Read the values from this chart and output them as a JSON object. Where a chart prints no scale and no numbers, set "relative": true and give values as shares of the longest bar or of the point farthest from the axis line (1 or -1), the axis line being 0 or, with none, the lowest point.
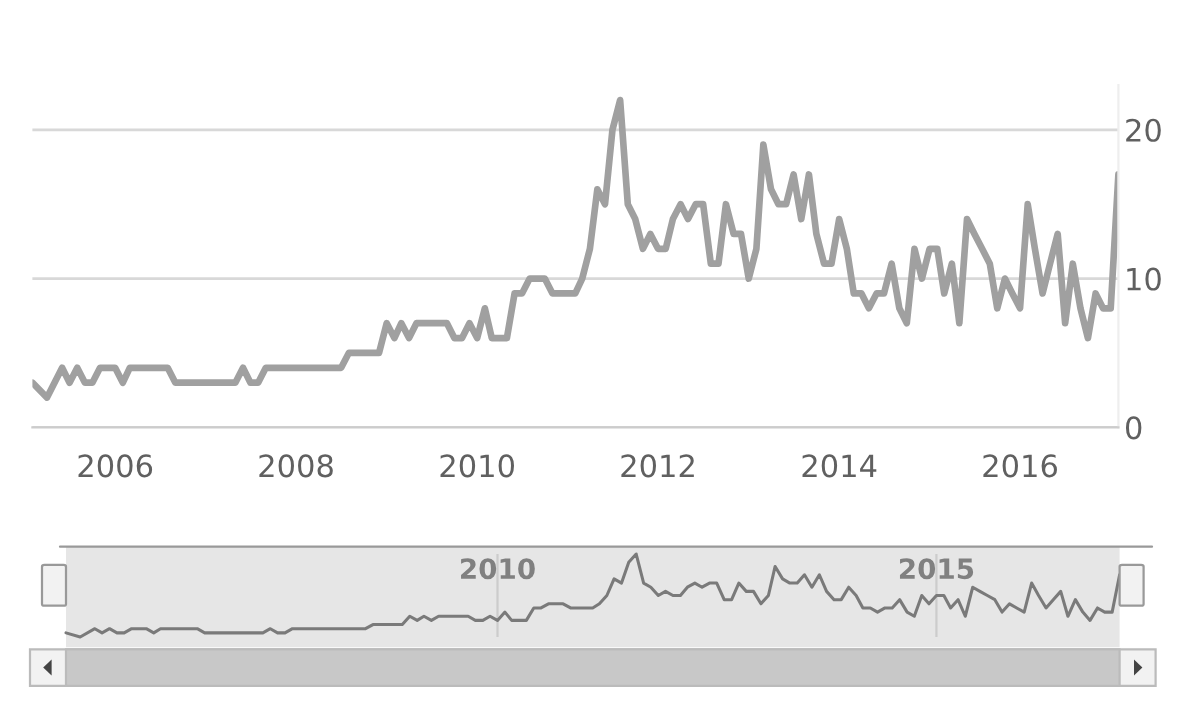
{
  "chart_data": [
    {
      "type": "line",
      "x": [
        "2005-02",
        "2005-04",
        "2005-06",
        "2005-07",
        "2005-08",
        "2005-09",
        "2005-10",
        "2005-11",
        "2006-01",
        "2006-02",
        "2006-03",
        "2006-08",
        "2006-09",
        "2007-05",
        "2007-06",
        "2007-07",
        "2007-08",
        "2007-09",
        "2008-07",
        "2008-08",
        "2008-12",
        "2009-01",
        "2009-02",
        "2009-03",
        "2009-04",
        "2009-05",
        "2009-09",
        "2009-10",
        "2009-11",
        "2009-12",
        "2010-01",
        "2010-02",
        "2010-03",
        "2010-05",
        "2010-06",
        "2010-07",
        "2010-08",
        "2010-10",
        "2010-11",
        "2011-02",
        "2011-03",
        "2011-04",
        "2011-05",
        "2011-06",
        "2011-07",
        "2011-08",
        "2011-09",
        "2011-10",
        "2011-11",
        "2011-12",
        "2012-01",
        "2012-02",
        "2012-03",
        "2012-04",
        "2012-05",
        "2012-06",
        "2012-07",
        "2012-08",
        "2012-09",
        "2012-10",
        "2012-11",
        "2012-12",
        "2013-01",
        "2013-02",
        "2013-03",
        "2013-04",
        "2013-05",
        "2013-06",
        "2013-07",
        "2013-08",
        "2013-09",
        "2013-10",
        "2013-11",
        "2013-12",
        "2014-01",
        "2014-02",
        "2014-03",
        "2014-04",
        "2014-05",
        "2014-06",
        "2014-07",
        "2014-08",
        "2014-09",
        "2014-10",
        "2014-11",
        "2014-12",
        "2015-01",
        "2015-02",
        "2015-03",
        "2015-04",
        "2015-05",
        "2015-06",
        "2015-07",
        "2015-08",
        "2015-09",
        "2015-10",
        "2015-11",
        "2015-12",
        "2016-01",
        "2016-02",
        "2016-03",
        "2016-04",
        "2016-05",
        "2016-06",
        "2016-07",
        "2016-08",
        "2016-09",
        "2016-10",
        "2016-11",
        "2016-12",
        "2017-01",
        "2017-02"
      ],
      "series": [
        {
          "color": "#a0a0a0",
          "values": [
            3,
            2,
            4,
            3,
            4,
            3,
            3,
            4,
            4,
            3,
            4,
            4,
            3,
            3,
            4,
            3,
            3,
            4,
            4,
            5,
            5,
            7,
            6,
            7,
            6,
            7,
            7,
            6,
            6,
            7,
            6,
            8,
            6,
            6,
            9,
            9,
            10,
            10,
            9,
            9,
            10,
            12,
            16,
            15,
            20,
            22,
            15,
            14,
            12,
            13,
            12,
            12,
            14,
            15,
            14,
            15,
            15,
            11,
            11,
            15,
            13,
            13,
            10,
            12,
            19,
            16,
            15,
            15,
            17,
            14,
            17,
            13,
            11,
            11,
            14,
            12,
            9,
            9,
            8,
            9,
            9,
            11,
            8,
            7,
            12,
            10,
            12,
            12,
            9,
            11,
            7,
            14,
            13,
            12,
            11,
            8,
            10,
            9,
            8,
            15,
            12,
            9,
            11,
            13,
            7,
            11,
            8,
            6,
            9,
            8,
            8,
            17
          ]
        }
      ],
      "xlim": [
        "2005-02",
        "2017-02"
      ],
      "xticks": [
        "2006",
        "2008",
        "2010",
        "2012",
        "2014",
        "2016"
      ],
      "ylim": [
        0,
        23
      ],
      "yticks": [
        0,
        10,
        20
      ],
      "grid": "y",
      "marker": "none",
      "line_style": "solid"
    },
    {
      "type": "line",
      "x": [
        "2005-02",
        "2005-04",
        "2005-06",
        "2005-07",
        "2005-08",
        "2005-09",
        "2005-10",
        "2005-11",
        "2006-01",
        "2006-02",
        "2006-03",
        "2006-08",
        "2006-09",
        "2007-05",
        "2007-06",
        "2007-07",
        "2007-08",
        "2007-09",
        "2008-07",
        "2008-08",
        "2008-12",
        "2009-01",
        "2009-02",
        "2009-03",
        "2009-04",
        "2009-05",
        "2009-09",
        "2009-10",
        "2009-11",
        "2009-12",
        "2010-01",
        "2010-02",
        "2010-03",
        "2010-05",
        "2010-06",
        "2010-07",
        "2010-08",
        "2010-10",
        "2010-11",
        "2011-02",
        "2011-03",
        "2011-04",
        "2011-05",
        "2011-06",
        "2011-07",
        "2011-08",
        "2011-09",
        "2011-10",
        "2011-11",
        "2011-12",
        "2012-01",
        "2012-02",
        "2012-03",
        "2012-04",
        "2012-05",
        "2012-06",
        "2012-07",
        "2012-08",
        "2012-09",
        "2012-10",
        "2012-11",
        "2012-12",
        "2013-01",
        "2013-02",
        "2013-03",
        "2013-04",
        "2013-05",
        "2013-06",
        "2013-07",
        "2013-08",
        "2013-09",
        "2013-10",
        "2013-11",
        "2013-12",
        "2014-01",
        "2014-02",
        "2014-03",
        "2014-04",
        "2014-05",
        "2014-06",
        "2014-07",
        "2014-08",
        "2014-09",
        "2014-10",
        "2014-11",
        "2014-12",
        "2015-01",
        "2015-02",
        "2015-03",
        "2015-04",
        "2015-05",
        "2015-06",
        "2015-07",
        "2015-08",
        "2015-09",
        "2015-10",
        "2015-11",
        "2015-12",
        "2016-01",
        "2016-02",
        "2016-03",
        "2016-04",
        "2016-05",
        "2016-06",
        "2016-07",
        "2016-08",
        "2016-09",
        "2016-10",
        "2016-11",
        "2016-12",
        "2017-01",
        "2017-02"
      ],
      "series": [
        {
          "color": "#7a7a7a",
          "values": [
            0.05,
            0,
            0.1,
            0.05,
            0.1,
            0.05,
            0.05,
            0.1,
            0.1,
            0.05,
            0.1,
            0.1,
            0.05,
            0.05,
            0.1,
            0.05,
            0.05,
            0.1,
            0.1,
            0.15,
            0.15,
            0.25,
            0.2,
            0.25,
            0.2,
            0.25,
            0.25,
            0.2,
            0.2,
            0.25,
            0.2,
            0.3,
            0.2,
            0.2,
            0.35,
            0.35,
            0.4,
            0.4,
            0.35,
            0.35,
            0.4,
            0.5,
            0.7,
            0.65,
            0.9,
            1,
            0.65,
            0.6,
            0.5,
            0.55,
            0.5,
            0.5,
            0.6,
            0.65,
            0.6,
            0.65,
            0.65,
            0.45,
            0.45,
            0.65,
            0.55,
            0.55,
            0.4,
            0.5,
            0.85,
            0.7,
            0.65,
            0.65,
            0.75,
            0.6,
            0.75,
            0.55,
            0.45,
            0.45,
            0.6,
            0.5,
            0.35,
            0.35,
            0.3,
            0.35,
            0.35,
            0.45,
            0.3,
            0.25,
            0.5,
            0.4,
            0.5,
            0.5,
            0.35,
            0.45,
            0.25,
            0.6,
            0.55,
            0.5,
            0.45,
            0.3,
            0.4,
            0.35,
            0.3,
            0.65,
            0.5,
            0.35,
            0.45,
            0.55,
            0.25,
            0.45,
            0.3,
            0.2,
            0.35,
            0.3,
            0.3,
            0.75
          ]
        }
      ],
      "relative": true,
      "xlim": [
        "2005-02",
        "2017-02"
      ],
      "xticks": [
        "2010",
        "2015"
      ],
      "grid": "x",
      "tick_labels": "x",
      "marker": "none",
      "line_style": "solid"
    }
  ]
}
